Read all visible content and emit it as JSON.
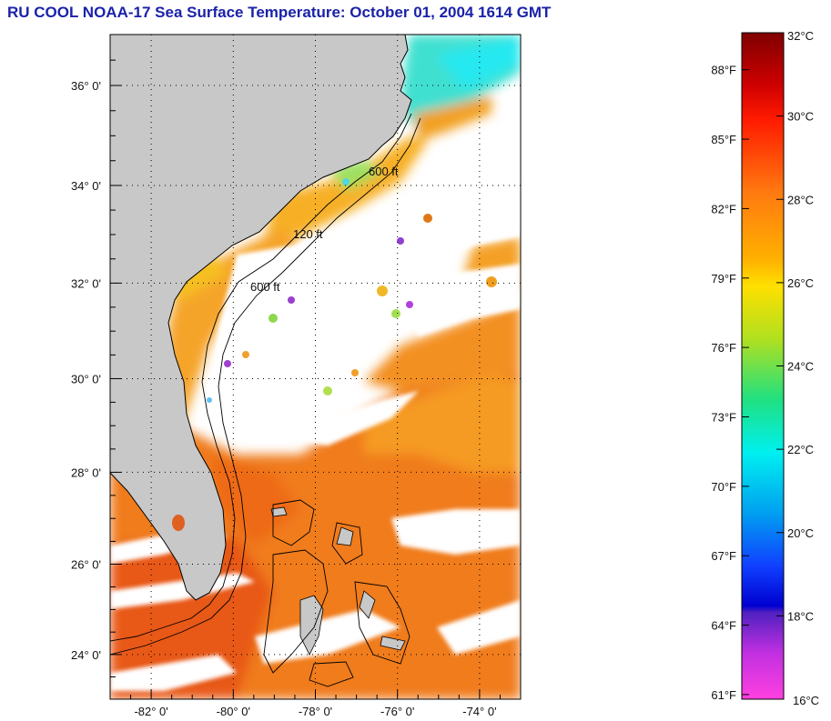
{
  "title": "RU COOL  NOAA-17  Sea Surface Temperature:  October 01, 2004 1614 GMT",
  "map": {
    "lat_labels": [
      "36° 0'",
      "34° 0'",
      "32° 0'",
      "30° 0'",
      "28° 0'",
      "26° 0'",
      "24° 0'"
    ],
    "lat_values": [
      36,
      34,
      32,
      30,
      28,
      26,
      24
    ],
    "lon_labels": [
      "-82° 0'",
      "-80° 0'",
      "-78° 0'",
      "-76° 0'",
      "-74° 0'"
    ],
    "lon_values": [
      -82,
      -80,
      -78,
      -76,
      -74
    ],
    "lat_range": [
      23,
      37
    ],
    "lon_range": [
      -83,
      -73
    ],
    "contour_labels": [
      "120 ft",
      "600 ft"
    ],
    "colors": {
      "land": "#c8c8c8",
      "cloud": "#ffffff",
      "frame": "#000000"
    }
  },
  "colorbar": {
    "fahrenheit_labels": [
      "88°F",
      "85°F",
      "82°F",
      "79°F",
      "76°F",
      "73°F",
      "70°F",
      "67°F",
      "64°F",
      "61°F"
    ],
    "celsius_labels": [
      "32°C",
      "30°C",
      "28°C",
      "26°C",
      "24°C",
      "22°C",
      "20°C",
      "18°C",
      "16°C"
    ],
    "celsius_values": [
      32,
      30,
      28,
      26,
      24,
      22,
      20,
      18,
      16
    ],
    "range_c": [
      16,
      32
    ]
  }
}
